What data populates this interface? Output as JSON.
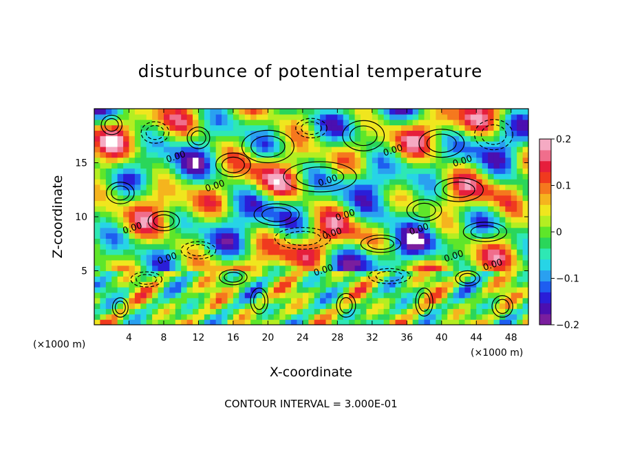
{
  "chart_data": {
    "type": "heatmap",
    "title": "disturbunce of potential temperature",
    "xlabel": "X-coordinate",
    "ylabel": "Z-coordinate",
    "x_unit_left": "(×1000 m)",
    "x_unit_right": "(×1000 m)",
    "xlim": [
      0,
      50
    ],
    "ylim": [
      0,
      20
    ],
    "x_ticks": [
      4,
      8,
      12,
      16,
      20,
      24,
      28,
      32,
      36,
      40,
      44,
      48
    ],
    "y_ticks": [
      5,
      10,
      15
    ],
    "colorbar": {
      "range": [
        -0.2,
        0.2
      ],
      "ticks": [
        0.2,
        0.1,
        0,
        -0.1,
        -0.2
      ],
      "tick_labels": [
        "0.2",
        "0.1",
        "0",
        "−0.1",
        "−0.2"
      ],
      "colors": [
        "#7a1e9e",
        "#4b0fb0",
        "#2a1ed8",
        "#1e5ef0",
        "#2aa0f0",
        "#27d4e6",
        "#2ee8b4",
        "#2ad65a",
        "#5ee62a",
        "#b4ee22",
        "#f0e61e",
        "#f5b41e",
        "#f5781e",
        "#f03a1e",
        "#e61e3c",
        "#f06e8c",
        "#f5aac3"
      ]
    },
    "contour_interval_text": "CONTOUR INTERVAL = 3.000E-01",
    "contour_labels": [
      {
        "x": 9.5,
        "y": 15.3,
        "text": "0.00"
      },
      {
        "x": 14,
        "y": 12.6,
        "text": "0.00"
      },
      {
        "x": 4.5,
        "y": 8.7,
        "text": "0.00"
      },
      {
        "x": 8.5,
        "y": 5.9,
        "text": "0.00"
      },
      {
        "x": 27,
        "y": 13.1,
        "text": "0.00"
      },
      {
        "x": 29,
        "y": 9.9,
        "text": "0.00"
      },
      {
        "x": 27.5,
        "y": 8.2,
        "text": "0.00"
      },
      {
        "x": 34.5,
        "y": 15.9,
        "text": "0.00"
      },
      {
        "x": 37.5,
        "y": 8.6,
        "text": "0.00"
      },
      {
        "x": 41.5,
        "y": 6.1,
        "text": "0.00"
      },
      {
        "x": 42.5,
        "y": 14.9,
        "text": "0.00"
      },
      {
        "x": 46,
        "y": 5.3,
        "text": "0.00"
      },
      {
        "x": 26.5,
        "y": 4.8,
        "text": "0.00"
      }
    ],
    "grid": false,
    "legend": "colorbar-right"
  }
}
